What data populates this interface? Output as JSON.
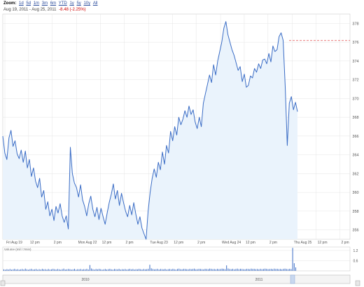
{
  "header": {
    "zoom_label": "Zoom:",
    "zoom_options": [
      "1d",
      "5d",
      "1m",
      "3m",
      "6m",
      "YTD",
      "1y",
      "5y",
      "10y",
      "All"
    ],
    "date_range": "Aug 19, 2011 - Aug 25, 2011",
    "change_text": "-8.48 (-2.25%)"
  },
  "volume": {
    "title": "Volume (mil / 2min)",
    "y_ticks": [
      "1.2",
      "0.6"
    ],
    "bars": [
      0.09,
      0.07,
      0.1,
      0.08,
      0.11,
      0.07,
      0.09,
      0.12,
      0.08,
      0.1,
      0.07,
      0.09,
      0.11,
      0.08,
      0.13,
      0.09,
      0.07,
      0.1,
      0.12,
      0.08,
      0.09,
      0.11,
      0.07,
      0.1,
      0.08,
      0.12,
      0.09,
      0.1,
      0.07,
      0.11,
      0.08,
      0.09,
      0.12,
      0.1,
      0.08,
      0.11,
      0.09,
      0.07,
      0.1,
      0.13,
      0.08,
      0.09,
      0.11,
      0.1,
      0.08,
      0.09,
      0.12,
      0.07,
      0.1,
      0.09,
      0.11,
      0.08,
      0.1,
      0.09,
      0.12,
      0.08,
      0.34,
      0.14,
      0.1,
      0.08,
      0.11,
      0.09,
      0.12,
      0.1,
      0.07,
      0.09,
      0.11,
      0.08,
      0.1,
      0.12,
      0.09,
      0.08,
      0.11,
      0.1,
      0.09,
      0.12,
      0.08,
      0.1,
      0.09,
      0.11,
      0.08,
      0.1,
      0.12,
      0.09,
      0.11,
      0.08,
      0.1,
      0.09,
      0.12,
      0.1,
      0.08,
      0.11,
      0.09,
      0.1,
      0.12,
      0.36,
      0.15,
      0.11,
      0.09,
      0.1,
      0.12,
      0.08,
      0.11,
      0.1,
      0.09,
      0.12,
      0.08,
      0.1,
      0.11,
      0.09,
      0.12,
      0.1,
      0.08,
      0.11,
      0.13,
      0.1,
      0.09,
      0.12,
      0.11,
      0.1,
      0.09,
      0.12,
      0.1,
      0.11,
      0.13,
      0.09,
      0.1,
      0.12,
      0.11,
      0.1,
      0.09,
      0.12,
      0.11,
      0.1,
      0.13,
      0.12,
      0.1,
      0.11,
      0.09,
      0.12,
      0.1,
      0.11,
      0.13,
      0.12,
      0.1,
      0.32,
      0.14,
      0.11,
      0.1,
      0.12,
      0.09,
      0.11,
      0.13,
      0.1,
      0.12,
      0.11,
      0.1,
      0.09,
      0.12,
      0.11,
      0.1,
      0.13,
      0.11,
      0.12,
      0.1,
      0.11,
      0.09,
      0.12,
      0.1,
      0.11,
      0.13,
      0.12,
      0.1,
      0.11,
      0.12,
      0.1,
      0.13,
      0.11,
      0.12,
      0.1,
      0.11,
      0.09,
      0.12,
      0.13,
      0.11,
      0.1,
      0.12,
      0.11,
      1.35,
      0.45,
      0.2
    ]
  },
  "navigator": {
    "labels": [
      "2010",
      "2011"
    ]
  },
  "chart_data": {
    "type": "line",
    "title": "",
    "xlabel": "",
    "ylabel": "",
    "ylim": [
      355,
      379
    ],
    "yticks": [
      356,
      358,
      360,
      362,
      364,
      366,
      368,
      370,
      372,
      374,
      376,
      378
    ],
    "x_tick_labels": [
      "Fri Aug 19",
      "12 pm",
      "2 pm",
      "Mon Aug 22",
      "12 pm",
      "2 pm",
      "Tue Aug 23",
      "12 pm",
      "2 pm",
      "Wed Aug 24",
      "12 pm",
      "2 pm",
      "Thu Aug 25",
      "12 pm",
      "2 pm"
    ],
    "reference_line": 376.18,
    "series": [
      {
        "values": [
          366.0,
          364.2,
          363.5,
          365.8,
          366.6,
          364.9,
          365.5,
          364.1,
          363.6,
          364.5,
          363.2,
          364.4,
          362.6,
          363.5,
          361.7,
          362.6,
          361.2,
          360.5,
          361.5,
          359.5,
          360.2,
          358.2,
          359.0,
          357.5,
          358.2,
          357.0,
          358.5,
          357.8,
          358.8,
          357.5,
          356.8,
          357.5,
          356.1,
          364.8,
          362.0,
          361.0,
          360.5,
          359.5,
          360.8,
          359.2,
          358.5,
          357.5,
          358.8,
          359.6,
          358.2,
          357.4,
          358.4,
          357.1,
          358.3,
          357.4,
          356.6,
          357.8,
          358.9,
          359.8,
          360.9,
          359.3,
          360.2,
          358.6,
          359.9,
          358.9,
          358.0,
          357.4,
          358.6,
          357.6,
          358.9,
          357.7,
          356.6,
          357.4,
          356.2,
          355.6,
          355.0,
          358.0,
          360.0,
          361.5,
          362.5,
          361.6,
          363.2,
          362.4,
          364.3,
          363.0,
          365.0,
          364.2,
          366.5,
          365.5,
          367.0,
          366.1,
          368.0,
          367.2,
          367.8,
          368.7,
          368.0,
          369.2,
          368.3,
          368.8,
          367.5,
          366.8,
          368.0,
          367.0,
          369.5,
          370.5,
          371.5,
          372.5,
          371.7,
          373.6,
          372.5,
          374.0,
          375.0,
          376.0,
          377.5,
          378.2,
          376.8,
          376.0,
          375.2,
          374.6,
          373.8,
          373.0,
          373.4,
          371.8,
          372.6,
          371.2,
          371.4,
          372.4,
          372.2,
          373.2,
          372.8,
          373.7,
          373.2,
          374.1,
          374.2,
          373.7,
          374.8,
          373.9,
          375.6,
          375.0,
          375.2,
          376.6,
          377.0,
          376.2,
          371.2,
          365.0,
          369.5,
          370.2,
          368.8,
          369.6,
          368.6
        ]
      }
    ]
  },
  "colors": {
    "line": "#3a6cc5",
    "area": "#eaf3fc",
    "grid": "#e4e4e4",
    "reference": "#e05050",
    "volume": "#3a6cc5",
    "axis_text": "#555555"
  }
}
